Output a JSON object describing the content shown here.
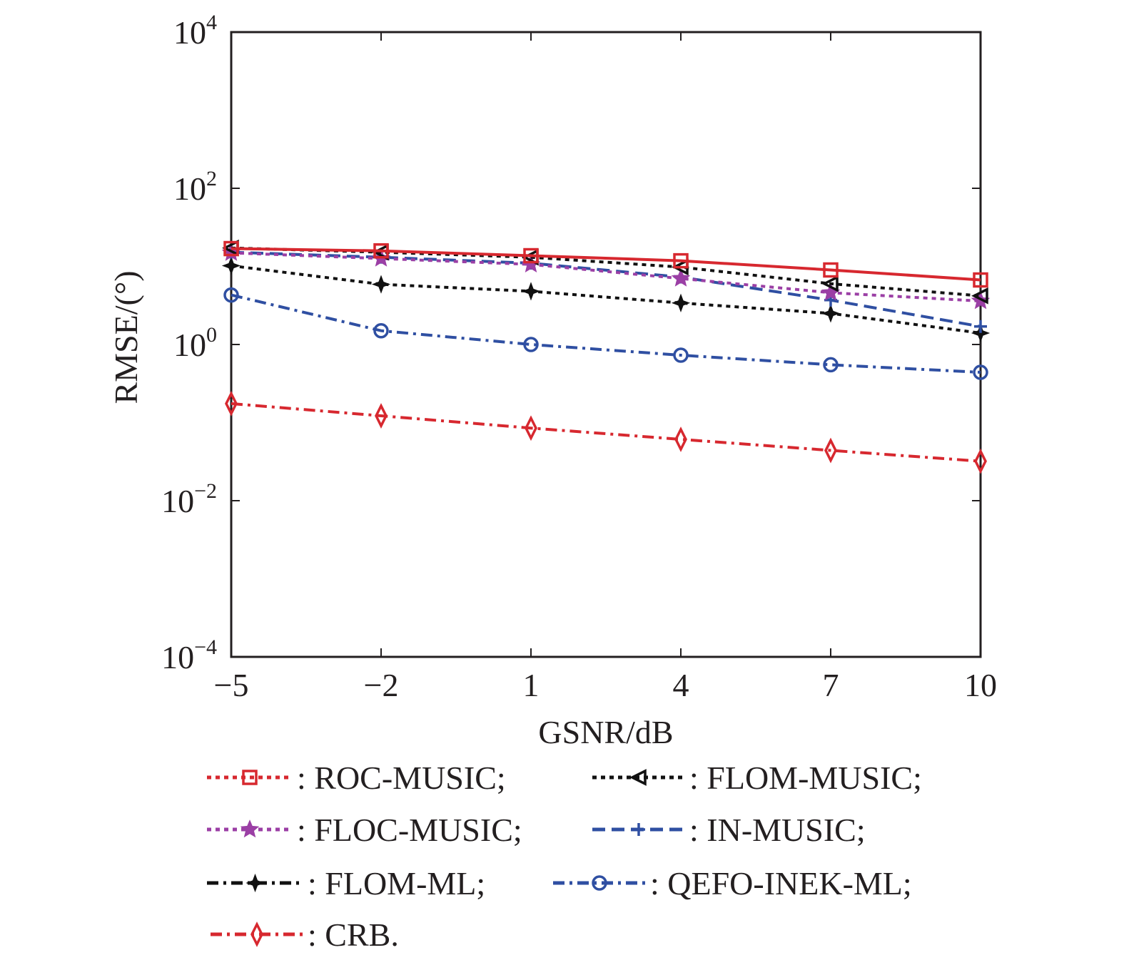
{
  "chart_data": {
    "type": "line",
    "title": "",
    "xlabel": "GSNR/dB",
    "ylabel": "RMSE/(°)",
    "yscale": "log",
    "x": [
      -5,
      -2,
      1,
      4,
      7,
      10
    ],
    "xlim": [
      -5,
      10
    ],
    "ylim": [
      0.0001,
      10000
    ],
    "xticks": [
      "−5",
      "−2",
      "1",
      "4",
      "7",
      "10"
    ],
    "yticks": [
      {
        "value": 10000,
        "base": "10",
        "exp": "4"
      },
      {
        "value": 100,
        "base": "10",
        "exp": "2"
      },
      {
        "value": 1,
        "base": "10",
        "exp": "0"
      },
      {
        "value": 0.01,
        "base": "10",
        "exp": "−2"
      },
      {
        "value": 0.0001,
        "base": "10",
        "exp": "−4"
      }
    ],
    "grid": false,
    "legend_position": "bottom",
    "series": [
      {
        "name": "ROC-MUSIC",
        "legend_text": ": ROC-MUSIC;",
        "color": "#d7282f",
        "marker": "square",
        "line": "solid",
        "legend_line": "dotted",
        "values": [
          16.9,
          15.8,
          13.7,
          11.8,
          9.0,
          6.7
        ]
      },
      {
        "name": "FLOM-MUSIC",
        "legend_text": ": FLOM-MUSIC;",
        "color": "#111111",
        "marker": "triangle-left",
        "line": "dotted",
        "legend_line": "dotted",
        "values": [
          17.2,
          15.2,
          13.1,
          9.8,
          6.0,
          4.2
        ]
      },
      {
        "name": "FLOC-MUSIC",
        "legend_text": ": FLOC-MUSIC;",
        "color": "#9b3fa5",
        "marker": "star",
        "line": "dotted",
        "legend_line": "dotted",
        "values": [
          14.9,
          12.6,
          10.6,
          7.0,
          4.6,
          3.6
        ]
      },
      {
        "name": "IN-MUSIC",
        "legend_text": ": IN-MUSIC;",
        "color": "#2f4fa2",
        "marker": "plus",
        "line": "dashed",
        "legend_line": "dashed",
        "values": [
          15.2,
          13.1,
          11.0,
          7.3,
          3.7,
          1.7
        ]
      },
      {
        "name": "FLOM-ML",
        "legend_text": ": FLOM-ML;",
        "color": "#111111",
        "marker": "plus-bold",
        "line": "dotted",
        "legend_line": "dashdot",
        "values": [
          10.2,
          5.9,
          4.8,
          3.4,
          2.5,
          1.4
        ]
      },
      {
        "name": "QEFO-INEK-ML",
        "legend_text": ": QEFO-INEK-ML;",
        "color": "#2f4fa2",
        "marker": "circle",
        "line": "dashdot",
        "legend_line": "dashdot",
        "values": [
          4.3,
          1.5,
          1.0,
          0.73,
          0.55,
          0.44
        ]
      },
      {
        "name": "CRB",
        "legend_text": ": CRB.",
        "color": "#d7282f",
        "marker": "diamond",
        "line": "dashdot",
        "legend_line": "dashdot",
        "values": [
          0.175,
          0.122,
          0.085,
          0.061,
          0.044,
          0.032
        ]
      }
    ]
  }
}
